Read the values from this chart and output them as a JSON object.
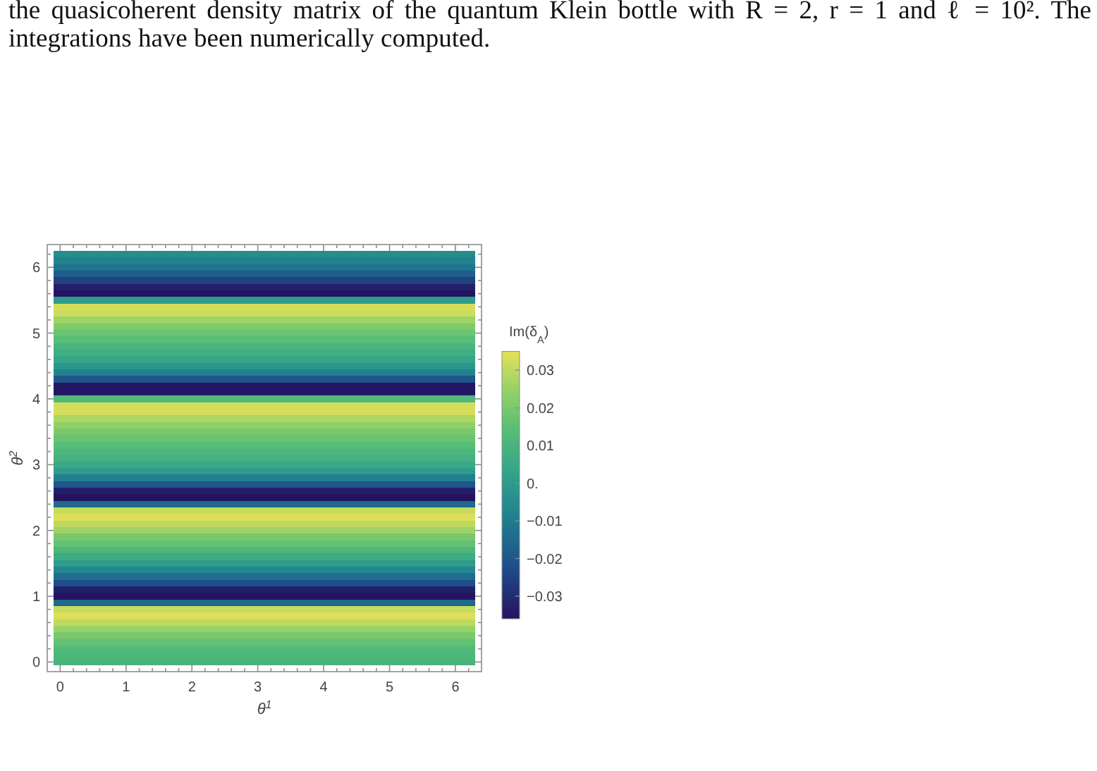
{
  "chart_data": {
    "type": "heatmap",
    "annotations": [
      "the quasicoherent density matrix of the quantum Klein bottle with R = 2, r = 1 and ℓ = 10². The integrations have been numerically computed."
    ],
    "xlabel": "θ$^{1}$",
    "ylabel": "θ$^{2}$",
    "clabel": "Im(δ$_{A}$)",
    "categories": [
      "0",
      null,
      null,
      null,
      null,
      "1",
      null,
      null,
      null,
      null,
      "2",
      null,
      null,
      null,
      null,
      "3",
      null,
      null,
      null,
      null,
      "4",
      null,
      null,
      null,
      null,
      "5",
      null,
      null,
      null,
      null,
      "6",
      null
    ],
    "y_categories": [
      null,
      null,
      "6",
      null,
      null,
      null,
      null,
      null,
      null,
      null,
      null,
      null,
      "5",
      null,
      null,
      null,
      null,
      null,
      null,
      null,
      null,
      null,
      "4",
      null,
      null,
      null,
      null,
      null,
      null,
      null,
      null,
      null,
      "3",
      null,
      null,
      null,
      null,
      null,
      null,
      null,
      null,
      null,
      "2",
      null,
      null,
      null,
      null,
      null,
      null,
      null,
      null,
      null,
      "1",
      null,
      null,
      null,
      null,
      null,
      null,
      null,
      null,
      null,
      "0"
    ],
    "cells": [
      [
        -0.005,
        -0.005,
        -0.005,
        -0.005,
        -0.005,
        -0.005,
        -0.005,
        -0.005,
        -0.005,
        -0.005,
        -0.005,
        -0.005,
        -0.005,
        -0.005,
        -0.005,
        -0.005,
        -0.005,
        -0.005,
        -0.005,
        -0.005,
        -0.005,
        -0.005,
        -0.005,
        -0.005,
        -0.005,
        -0.005,
        -0.005,
        -0.005,
        -0.005,
        -0.005,
        -0.005,
        -0.005
      ],
      [
        -0.008,
        -0.008,
        -0.008,
        -0.008,
        -0.008,
        -0.008,
        -0.008,
        -0.008,
        -0.008,
        -0.008,
        -0.008,
        -0.008,
        -0.008,
        -0.008,
        -0.008,
        -0.008,
        -0.008,
        -0.008,
        -0.008,
        -0.008,
        -0.008,
        -0.008,
        -0.008,
        -0.008,
        -0.008,
        -0.008,
        -0.008,
        -0.008,
        -0.008,
        -0.008,
        -0.008,
        -0.008
      ],
      [
        -0.012,
        -0.012,
        -0.012,
        -0.012,
        -0.012,
        -0.012,
        -0.012,
        -0.012,
        -0.012,
        -0.012,
        -0.012,
        -0.012,
        -0.012,
        -0.012,
        -0.012,
        -0.012,
        -0.012,
        -0.012,
        -0.012,
        -0.012,
        -0.012,
        -0.012,
        -0.012,
        -0.012,
        -0.012,
        -0.012,
        -0.012,
        -0.012,
        -0.012,
        -0.012,
        -0.012,
        -0.012
      ],
      [
        -0.018,
        -0.018,
        -0.018,
        -0.018,
        -0.018,
        -0.018,
        -0.018,
        -0.018,
        -0.018,
        -0.018,
        -0.018,
        -0.018,
        -0.018,
        -0.018,
        -0.018,
        -0.018,
        -0.018,
        -0.018,
        -0.018,
        -0.018,
        -0.018,
        -0.018,
        -0.018,
        -0.018,
        -0.018,
        -0.018,
        -0.018,
        -0.018,
        -0.018,
        -0.018,
        -0.018,
        -0.018
      ],
      [
        -0.025,
        -0.025,
        -0.025,
        -0.025,
        -0.025,
        -0.025,
        -0.025,
        -0.025,
        -0.025,
        -0.025,
        -0.025,
        -0.025,
        -0.025,
        -0.025,
        -0.025,
        -0.025,
        -0.025,
        -0.025,
        -0.025,
        -0.025,
        -0.025,
        -0.025,
        -0.025,
        -0.025,
        -0.025,
        -0.025,
        -0.025,
        -0.025,
        -0.025,
        -0.025,
        -0.025,
        -0.025
      ],
      [
        -0.033,
        -0.033,
        -0.033,
        -0.033,
        -0.033,
        -0.033,
        -0.033,
        -0.033,
        -0.033,
        -0.033,
        -0.033,
        -0.033,
        -0.033,
        -0.033,
        -0.033,
        -0.033,
        -0.033,
        -0.033,
        -0.033,
        -0.033,
        -0.033,
        -0.033,
        -0.033,
        -0.033,
        -0.033,
        -0.033,
        -0.033,
        -0.033,
        -0.033,
        -0.033,
        -0.033,
        -0.033
      ],
      [
        -0.036,
        -0.036,
        -0.036,
        -0.036,
        -0.036,
        -0.036,
        -0.036,
        -0.036,
        -0.036,
        -0.036,
        -0.036,
        -0.036,
        -0.036,
        -0.036,
        -0.036,
        -0.036,
        -0.036,
        -0.036,
        -0.036,
        -0.036,
        -0.036,
        -0.036,
        -0.036,
        -0.036,
        -0.036,
        -0.036,
        -0.036,
        -0.036,
        -0.036,
        -0.036,
        -0.036,
        -0.036
      ],
      [
        0,
        0,
        0,
        0,
        0,
        0,
        0,
        0,
        0,
        0,
        0,
        0,
        0,
        0,
        0,
        0,
        0,
        0,
        0,
        0,
        0,
        0,
        0,
        0,
        0,
        0,
        0,
        0,
        0,
        0,
        0,
        0
      ],
      [
        0.033,
        0.033,
        0.033,
        0.033,
        0.033,
        0.033,
        0.033,
        0.033,
        0.033,
        0.033,
        0.033,
        0.033,
        0.033,
        0.033,
        0.033,
        0.033,
        0.033,
        0.033,
        0.033,
        0.033,
        0.033,
        0.033,
        0.033,
        0.033,
        0.033,
        0.033,
        0.033,
        0.033,
        0.033,
        0.033,
        0.033,
        0.033
      ],
      [
        0.032,
        0.032,
        0.032,
        0.032,
        0.032,
        0.032,
        0.032,
        0.032,
        0.032,
        0.032,
        0.032,
        0.032,
        0.032,
        0.032,
        0.032,
        0.032,
        0.032,
        0.032,
        0.032,
        0.032,
        0.032,
        0.032,
        0.032,
        0.032,
        0.032,
        0.032,
        0.032,
        0.032,
        0.032,
        0.032,
        0.032,
        0.032
      ],
      [
        0.026,
        0.026,
        0.026,
        0.026,
        0.026,
        0.026,
        0.026,
        0.026,
        0.026,
        0.026,
        0.026,
        0.026,
        0.026,
        0.026,
        0.026,
        0.026,
        0.026,
        0.026,
        0.026,
        0.026,
        0.026,
        0.026,
        0.026,
        0.026,
        0.026,
        0.026,
        0.026,
        0.026,
        0.026,
        0.026,
        0.026,
        0.026
      ],
      [
        0.021,
        0.021,
        0.021,
        0.021,
        0.021,
        0.021,
        0.021,
        0.021,
        0.021,
        0.021,
        0.021,
        0.021,
        0.021,
        0.021,
        0.021,
        0.021,
        0.021,
        0.021,
        0.021,
        0.021,
        0.021,
        0.021,
        0.021,
        0.021,
        0.021,
        0.021,
        0.021,
        0.021,
        0.021,
        0.021,
        0.021,
        0.021
      ],
      [
        0.017,
        0.017,
        0.017,
        0.017,
        0.017,
        0.017,
        0.017,
        0.017,
        0.017,
        0.017,
        0.017,
        0.017,
        0.017,
        0.017,
        0.017,
        0.017,
        0.017,
        0.017,
        0.017,
        0.017,
        0.017,
        0.017,
        0.017,
        0.017,
        0.017,
        0.017,
        0.017,
        0.017,
        0.017,
        0.017,
        0.017,
        0.017
      ],
      [
        0.014,
        0.014,
        0.014,
        0.014,
        0.014,
        0.014,
        0.014,
        0.014,
        0.014,
        0.014,
        0.014,
        0.014,
        0.014,
        0.014,
        0.014,
        0.014,
        0.014,
        0.014,
        0.014,
        0.014,
        0.014,
        0.014,
        0.014,
        0.014,
        0.014,
        0.014,
        0.014,
        0.014,
        0.014,
        0.014,
        0.014,
        0.014
      ],
      [
        0.01,
        0.01,
        0.01,
        0.01,
        0.01,
        0.01,
        0.01,
        0.01,
        0.01,
        0.01,
        0.01,
        0.01,
        0.01,
        0.01,
        0.01,
        0.01,
        0.01,
        0.01,
        0.01,
        0.01,
        0.01,
        0.01,
        0.01,
        0.01,
        0.01,
        0.01,
        0.01,
        0.01,
        0.01,
        0.01,
        0.01,
        0.01
      ],
      [
        0.007,
        0.007,
        0.007,
        0.007,
        0.007,
        0.007,
        0.007,
        0.007,
        0.007,
        0.007,
        0.007,
        0.007,
        0.007,
        0.007,
        0.007,
        0.007,
        0.007,
        0.007,
        0.007,
        0.007,
        0.007,
        0.007,
        0.007,
        0.007,
        0.007,
        0.007,
        0.007,
        0.007,
        0.007,
        0.007,
        0.007,
        0.007
      ],
      [
        0.004,
        0.004,
        0.004,
        0.004,
        0.004,
        0.004,
        0.004,
        0.004,
        0.004,
        0.004,
        0.004,
        0.004,
        0.004,
        0.004,
        0.004,
        0.004,
        0.004,
        0.004,
        0.004,
        0.004,
        0.004,
        0.004,
        0.004,
        0.004,
        0.004,
        0.004,
        0.004,
        0.004,
        0.004,
        0.004,
        0.004,
        0.004
      ],
      [
        -0.002,
        -0.002,
        -0.002,
        -0.002,
        -0.002,
        -0.002,
        -0.002,
        -0.002,
        -0.002,
        -0.002,
        -0.002,
        -0.002,
        -0.002,
        -0.002,
        -0.002,
        -0.002,
        -0.002,
        -0.002,
        -0.002,
        -0.002,
        -0.002,
        -0.002,
        -0.002,
        -0.002,
        -0.002,
        -0.002,
        -0.002,
        -0.002,
        -0.002,
        -0.002,
        -0.002,
        -0.002
      ],
      [
        -0.008,
        -0.008,
        -0.008,
        -0.008,
        -0.008,
        -0.008,
        -0.008,
        -0.008,
        -0.008,
        -0.008,
        -0.008,
        -0.008,
        -0.008,
        -0.008,
        -0.008,
        -0.008,
        -0.008,
        -0.008,
        -0.008,
        -0.008,
        -0.008,
        -0.008,
        -0.008,
        -0.008,
        -0.008,
        -0.008,
        -0.008,
        -0.008,
        -0.008,
        -0.008,
        -0.008,
        -0.008
      ],
      [
        -0.02,
        -0.02,
        -0.02,
        -0.02,
        -0.02,
        -0.02,
        -0.02,
        -0.02,
        -0.02,
        -0.02,
        -0.02,
        -0.02,
        -0.02,
        -0.02,
        -0.02,
        -0.02,
        -0.02,
        -0.02,
        -0.02,
        -0.02,
        -0.02,
        -0.02,
        -0.02,
        -0.02,
        -0.02,
        -0.02,
        -0.02,
        -0.02,
        -0.02,
        -0.02,
        -0.02,
        -0.02
      ],
      [
        -0.035,
        -0.035,
        -0.035,
        -0.035,
        -0.035,
        -0.035,
        -0.035,
        -0.035,
        -0.035,
        -0.035,
        -0.035,
        -0.035,
        -0.035,
        -0.035,
        -0.035,
        -0.035,
        -0.035,
        -0.035,
        -0.035,
        -0.035,
        -0.035,
        -0.035,
        -0.035,
        -0.035,
        -0.035,
        -0.035,
        -0.035,
        -0.035,
        -0.035,
        -0.035,
        -0.035,
        -0.035
      ],
      [
        -0.035,
        -0.035,
        -0.035,
        -0.035,
        -0.035,
        -0.035,
        -0.035,
        -0.035,
        -0.035,
        -0.035,
        -0.035,
        -0.035,
        -0.035,
        -0.035,
        -0.035,
        -0.035,
        -0.035,
        -0.035,
        -0.035,
        -0.035,
        -0.035,
        -0.035,
        -0.035,
        -0.035,
        -0.035,
        -0.035,
        -0.035,
        -0.035,
        -0.035,
        -0.035,
        -0.035,
        -0.035
      ],
      [
        0.012,
        0.012,
        0.012,
        0.012,
        0.012,
        0.012,
        0.012,
        0.012,
        0.012,
        0.012,
        0.012,
        0.012,
        0.012,
        0.012,
        0.012,
        0.012,
        0.012,
        0.012,
        0.012,
        0.012,
        0.012,
        0.012,
        0.012,
        0.012,
        0.012,
        0.012,
        0.012,
        0.012,
        0.012,
        0.012,
        0.012,
        0.012
      ],
      [
        0.033,
        0.033,
        0.033,
        0.033,
        0.033,
        0.033,
        0.033,
        0.033,
        0.033,
        0.033,
        0.033,
        0.033,
        0.033,
        0.033,
        0.033,
        0.033,
        0.033,
        0.033,
        0.033,
        0.033,
        0.033,
        0.033,
        0.033,
        0.033,
        0.033,
        0.033,
        0.033,
        0.033,
        0.033,
        0.033,
        0.033,
        0.033
      ],
      [
        0.033,
        0.033,
        0.033,
        0.033,
        0.033,
        0.033,
        0.033,
        0.033,
        0.033,
        0.033,
        0.033,
        0.033,
        0.033,
        0.033,
        0.033,
        0.033,
        0.033,
        0.033,
        0.033,
        0.033,
        0.033,
        0.033,
        0.033,
        0.033,
        0.033,
        0.033,
        0.033,
        0.033,
        0.033,
        0.033,
        0.033,
        0.033
      ],
      [
        0.028,
        0.028,
        0.028,
        0.028,
        0.028,
        0.028,
        0.028,
        0.028,
        0.028,
        0.028,
        0.028,
        0.028,
        0.028,
        0.028,
        0.028,
        0.028,
        0.028,
        0.028,
        0.028,
        0.028,
        0.028,
        0.028,
        0.028,
        0.028,
        0.028,
        0.028,
        0.028,
        0.028,
        0.028,
        0.028,
        0.028,
        0.028
      ],
      [
        0.024,
        0.024,
        0.024,
        0.024,
        0.024,
        0.024,
        0.024,
        0.024,
        0.024,
        0.024,
        0.024,
        0.024,
        0.024,
        0.024,
        0.024,
        0.024,
        0.024,
        0.024,
        0.024,
        0.024,
        0.024,
        0.024,
        0.024,
        0.024,
        0.024,
        0.024,
        0.024,
        0.024,
        0.024,
        0.024,
        0.024,
        0.024
      ],
      [
        0.02,
        0.02,
        0.02,
        0.02,
        0.02,
        0.02,
        0.02,
        0.02,
        0.02,
        0.02,
        0.02,
        0.02,
        0.02,
        0.02,
        0.02,
        0.02,
        0.02,
        0.02,
        0.02,
        0.02,
        0.02,
        0.02,
        0.02,
        0.02,
        0.02,
        0.02,
        0.02,
        0.02,
        0.02,
        0.02,
        0.02,
        0.02
      ],
      [
        0.017,
        0.017,
        0.017,
        0.017,
        0.017,
        0.017,
        0.017,
        0.017,
        0.017,
        0.017,
        0.017,
        0.017,
        0.017,
        0.017,
        0.017,
        0.017,
        0.017,
        0.017,
        0.017,
        0.017,
        0.017,
        0.017,
        0.017,
        0.017,
        0.017,
        0.017,
        0.017,
        0.017,
        0.017,
        0.017,
        0.017,
        0.017
      ],
      [
        0.014,
        0.014,
        0.014,
        0.014,
        0.014,
        0.014,
        0.014,
        0.014,
        0.014,
        0.014,
        0.014,
        0.014,
        0.014,
        0.014,
        0.014,
        0.014,
        0.014,
        0.014,
        0.014,
        0.014,
        0.014,
        0.014,
        0.014,
        0.014,
        0.014,
        0.014,
        0.014,
        0.014,
        0.014,
        0.014,
        0.014,
        0.014
      ],
      [
        0.011,
        0.011,
        0.011,
        0.011,
        0.011,
        0.011,
        0.011,
        0.011,
        0.011,
        0.011,
        0.011,
        0.011,
        0.011,
        0.011,
        0.011,
        0.011,
        0.011,
        0.011,
        0.011,
        0.011,
        0.011,
        0.011,
        0.011,
        0.011,
        0.011,
        0.011,
        0.011,
        0.011,
        0.011,
        0.011,
        0.011,
        0.011
      ],
      [
        0.009,
        0.009,
        0.009,
        0.009,
        0.009,
        0.009,
        0.009,
        0.009,
        0.009,
        0.009,
        0.009,
        0.009,
        0.009,
        0.009,
        0.009,
        0.009,
        0.009,
        0.009,
        0.009,
        0.009,
        0.009,
        0.009,
        0.009,
        0.009,
        0.009,
        0.009,
        0.009,
        0.009,
        0.009,
        0.009,
        0.009,
        0.009
      ],
      [
        0.005,
        0.005,
        0.005,
        0.005,
        0.005,
        0.005,
        0.005,
        0.005,
        0.005,
        0.005,
        0.005,
        0.005,
        0.005,
        0.005,
        0.005,
        0.005,
        0.005,
        0.005,
        0.005,
        0.005,
        0.005,
        0.005,
        0.005,
        0.005,
        0.005,
        0.005,
        0.005,
        0.005,
        0.005,
        0.005,
        0.005,
        0.005
      ],
      [
        0,
        0,
        0,
        0,
        0,
        0,
        0,
        0,
        0,
        0,
        0,
        0,
        0,
        0,
        0,
        0,
        0,
        0,
        0,
        0,
        0,
        0,
        0,
        0,
        0,
        0,
        0,
        0,
        0,
        0,
        0,
        0
      ],
      [
        -0.009,
        -0.009,
        -0.009,
        -0.009,
        -0.009,
        -0.009,
        -0.009,
        -0.009,
        -0.009,
        -0.009,
        -0.009,
        -0.009,
        -0.009,
        -0.009,
        -0.009,
        -0.009,
        -0.009,
        -0.009,
        -0.009,
        -0.009,
        -0.009,
        -0.009,
        -0.009,
        -0.009,
        -0.009,
        -0.009,
        -0.009,
        -0.009,
        -0.009,
        -0.009,
        -0.009,
        -0.009
      ],
      [
        -0.02,
        -0.02,
        -0.02,
        -0.02,
        -0.02,
        -0.02,
        -0.02,
        -0.02,
        -0.02,
        -0.02,
        -0.02,
        -0.02,
        -0.02,
        -0.02,
        -0.02,
        -0.02,
        -0.02,
        -0.02,
        -0.02,
        -0.02,
        -0.02,
        -0.02,
        -0.02,
        -0.02,
        -0.02,
        -0.02,
        -0.02,
        -0.02,
        -0.02,
        -0.02,
        -0.02,
        -0.02
      ],
      [
        -0.033,
        -0.033,
        -0.033,
        -0.033,
        -0.033,
        -0.033,
        -0.033,
        -0.033,
        -0.033,
        -0.033,
        -0.033,
        -0.033,
        -0.033,
        -0.033,
        -0.033,
        -0.033,
        -0.033,
        -0.033,
        -0.033,
        -0.033,
        -0.033,
        -0.033,
        -0.033,
        -0.033,
        -0.033,
        -0.033,
        -0.033,
        -0.033,
        -0.033,
        -0.033,
        -0.033,
        -0.033
      ],
      [
        -0.036,
        -0.036,
        -0.036,
        -0.036,
        -0.036,
        -0.036,
        -0.036,
        -0.036,
        -0.036,
        -0.036,
        -0.036,
        -0.036,
        -0.036,
        -0.036,
        -0.036,
        -0.036,
        -0.036,
        -0.036,
        -0.036,
        -0.036,
        -0.036,
        -0.036,
        -0.036,
        -0.036,
        -0.036,
        -0.036,
        -0.036,
        -0.036,
        -0.036,
        -0.036,
        -0.036,
        -0.036
      ],
      [
        -0.015,
        -0.015,
        -0.015,
        -0.015,
        -0.015,
        -0.015,
        -0.015,
        -0.015,
        -0.015,
        -0.015,
        -0.015,
        -0.015,
        -0.015,
        -0.015,
        -0.015,
        -0.015,
        -0.015,
        -0.015,
        -0.015,
        -0.015,
        -0.015,
        -0.015,
        -0.015,
        -0.015,
        -0.015,
        -0.015,
        -0.015,
        -0.015,
        -0.015,
        -0.015,
        -0.015,
        -0.015
      ],
      [
        0.031,
        0.031,
        0.031,
        0.031,
        0.031,
        0.031,
        0.031,
        0.031,
        0.031,
        0.031,
        0.031,
        0.031,
        0.031,
        0.031,
        0.031,
        0.031,
        0.031,
        0.031,
        0.031,
        0.031,
        0.031,
        0.031,
        0.031,
        0.031,
        0.031,
        0.031,
        0.031,
        0.031,
        0.031,
        0.031,
        0.031,
        0.031
      ],
      [
        0.034,
        0.034,
        0.034,
        0.034,
        0.034,
        0.034,
        0.034,
        0.034,
        0.034,
        0.034,
        0.034,
        0.034,
        0.034,
        0.034,
        0.034,
        0.034,
        0.034,
        0.034,
        0.034,
        0.034,
        0.034,
        0.034,
        0.034,
        0.034,
        0.034,
        0.034,
        0.034,
        0.034,
        0.034,
        0.034,
        0.034,
        0.034
      ],
      [
        0.03,
        0.03,
        0.03,
        0.03,
        0.03,
        0.03,
        0.03,
        0.03,
        0.03,
        0.03,
        0.03,
        0.03,
        0.03,
        0.03,
        0.03,
        0.03,
        0.03,
        0.03,
        0.03,
        0.03,
        0.03,
        0.03,
        0.03,
        0.03,
        0.03,
        0.03,
        0.03,
        0.03,
        0.03,
        0.03,
        0.03,
        0.03
      ],
      [
        0.026,
        0.026,
        0.026,
        0.026,
        0.026,
        0.026,
        0.026,
        0.026,
        0.026,
        0.026,
        0.026,
        0.026,
        0.026,
        0.026,
        0.026,
        0.026,
        0.026,
        0.026,
        0.026,
        0.026,
        0.026,
        0.026,
        0.026,
        0.026,
        0.026,
        0.026,
        0.026,
        0.026,
        0.026,
        0.026,
        0.026,
        0.026
      ],
      [
        0.02,
        0.02,
        0.02,
        0.02,
        0.02,
        0.02,
        0.02,
        0.02,
        0.02,
        0.02,
        0.02,
        0.02,
        0.02,
        0.02,
        0.02,
        0.02,
        0.02,
        0.02,
        0.02,
        0.02,
        0.02,
        0.02,
        0.02,
        0.02,
        0.02,
        0.02,
        0.02,
        0.02,
        0.02,
        0.02,
        0.02,
        0.02
      ],
      [
        0.016,
        0.016,
        0.016,
        0.016,
        0.016,
        0.016,
        0.016,
        0.016,
        0.016,
        0.016,
        0.016,
        0.016,
        0.016,
        0.016,
        0.016,
        0.016,
        0.016,
        0.016,
        0.016,
        0.016,
        0.016,
        0.016,
        0.016,
        0.016,
        0.016,
        0.016,
        0.016,
        0.016,
        0.016,
        0.016,
        0.016,
        0.016
      ],
      [
        0.011,
        0.011,
        0.011,
        0.011,
        0.011,
        0.011,
        0.011,
        0.011,
        0.011,
        0.011,
        0.011,
        0.011,
        0.011,
        0.011,
        0.011,
        0.011,
        0.011,
        0.011,
        0.011,
        0.011,
        0.011,
        0.011,
        0.011,
        0.011,
        0.011,
        0.011,
        0.011,
        0.011,
        0.011,
        0.011,
        0.011,
        0.011
      ],
      [
        0.006,
        0.006,
        0.006,
        0.006,
        0.006,
        0.006,
        0.006,
        0.006,
        0.006,
        0.006,
        0.006,
        0.006,
        0.006,
        0.006,
        0.006,
        0.006,
        0.006,
        0.006,
        0.006,
        0.006,
        0.006,
        0.006,
        0.006,
        0.006,
        0.006,
        0.006,
        0.006,
        0.006,
        0.006,
        0.006,
        0.006,
        0.006
      ],
      [
        0,
        0,
        0,
        0,
        0,
        0,
        0,
        0,
        0,
        0,
        0,
        0,
        0,
        0,
        0,
        0,
        0,
        0,
        0,
        0,
        0,
        0,
        0,
        0,
        0,
        0,
        0,
        0,
        0,
        0,
        0,
        0
      ],
      [
        -0.007,
        -0.007,
        -0.007,
        -0.007,
        -0.007,
        -0.007,
        -0.007,
        -0.007,
        -0.007,
        -0.007,
        -0.007,
        -0.007,
        -0.007,
        -0.007,
        -0.007,
        -0.007,
        -0.007,
        -0.007,
        -0.007,
        -0.007,
        -0.007,
        -0.007,
        -0.007,
        -0.007,
        -0.007,
        -0.007,
        -0.007,
        -0.007,
        -0.007,
        -0.007,
        -0.007,
        -0.007
      ],
      [
        -0.014,
        -0.014,
        -0.014,
        -0.014,
        -0.014,
        -0.014,
        -0.014,
        -0.014,
        -0.014,
        -0.014,
        -0.014,
        -0.014,
        -0.014,
        -0.014,
        -0.014,
        -0.014,
        -0.014,
        -0.014,
        -0.014,
        -0.014,
        -0.014,
        -0.014,
        -0.014,
        -0.014,
        -0.014,
        -0.014,
        -0.014,
        -0.014,
        -0.014,
        -0.014,
        -0.014,
        -0.014
      ],
      [
        -0.022,
        -0.022,
        -0.022,
        -0.022,
        -0.022,
        -0.022,
        -0.022,
        -0.022,
        -0.022,
        -0.022,
        -0.022,
        -0.022,
        -0.022,
        -0.022,
        -0.022,
        -0.022,
        -0.022,
        -0.022,
        -0.022,
        -0.022,
        -0.022,
        -0.022,
        -0.022,
        -0.022,
        -0.022,
        -0.022,
        -0.022,
        -0.022,
        -0.022,
        -0.022,
        -0.022,
        -0.022
      ],
      [
        -0.033,
        -0.033,
        -0.033,
        -0.033,
        -0.033,
        -0.033,
        -0.033,
        -0.033,
        -0.033,
        -0.033,
        -0.033,
        -0.033,
        -0.033,
        -0.033,
        -0.033,
        -0.033,
        -0.033,
        -0.033,
        -0.033,
        -0.033,
        -0.033,
        -0.033,
        -0.033,
        -0.033,
        -0.033,
        -0.033,
        -0.033,
        -0.033,
        -0.033,
        -0.033,
        -0.033,
        -0.033
      ],
      [
        -0.036,
        -0.036,
        -0.036,
        -0.036,
        -0.036,
        -0.036,
        -0.036,
        -0.036,
        -0.036,
        -0.036,
        -0.036,
        -0.036,
        -0.036,
        -0.036,
        -0.036,
        -0.036,
        -0.036,
        -0.036,
        -0.036,
        -0.036,
        -0.036,
        -0.036,
        -0.036,
        -0.036,
        -0.036,
        -0.036,
        -0.036,
        -0.036,
        -0.036,
        -0.036,
        -0.036,
        -0.036
      ],
      [
        -0.015,
        -0.015,
        -0.015,
        -0.015,
        -0.015,
        -0.015,
        -0.015,
        -0.015,
        -0.015,
        -0.015,
        -0.015,
        -0.015,
        -0.015,
        -0.015,
        -0.015,
        -0.015,
        -0.015,
        -0.015,
        -0.015,
        -0.015,
        -0.015,
        -0.015,
        -0.015,
        -0.015,
        -0.015,
        -0.015,
        -0.015,
        -0.015,
        -0.015,
        -0.015,
        -0.015,
        -0.015
      ],
      [
        0.031,
        0.031,
        0.031,
        0.031,
        0.031,
        0.031,
        0.031,
        0.031,
        0.031,
        0.031,
        0.031,
        0.031,
        0.031,
        0.031,
        0.031,
        0.031,
        0.031,
        0.031,
        0.031,
        0.031,
        0.031,
        0.031,
        0.031,
        0.031,
        0.031,
        0.031,
        0.031,
        0.031,
        0.031,
        0.031,
        0.031,
        0.031
      ],
      [
        0.034,
        0.034,
        0.034,
        0.034,
        0.034,
        0.034,
        0.034,
        0.034,
        0.034,
        0.034,
        0.034,
        0.034,
        0.034,
        0.034,
        0.034,
        0.034,
        0.034,
        0.034,
        0.034,
        0.034,
        0.034,
        0.034,
        0.034,
        0.034,
        0.034,
        0.034,
        0.034,
        0.034,
        0.034,
        0.034,
        0.034,
        0.034
      ],
      [
        0.03,
        0.03,
        0.03,
        0.03,
        0.03,
        0.03,
        0.03,
        0.03,
        0.03,
        0.03,
        0.03,
        0.03,
        0.03,
        0.03,
        0.03,
        0.03,
        0.03,
        0.03,
        0.03,
        0.03,
        0.03,
        0.03,
        0.03,
        0.03,
        0.03,
        0.03,
        0.03,
        0.03,
        0.03,
        0.03,
        0.03,
        0.03
      ],
      [
        0.025,
        0.025,
        0.025,
        0.025,
        0.025,
        0.025,
        0.025,
        0.025,
        0.025,
        0.025,
        0.025,
        0.025,
        0.025,
        0.025,
        0.025,
        0.025,
        0.025,
        0.025,
        0.025,
        0.025,
        0.025,
        0.025,
        0.025,
        0.025,
        0.025,
        0.025,
        0.025,
        0.025,
        0.025,
        0.025,
        0.025,
        0.025
      ],
      [
        0.02,
        0.02,
        0.02,
        0.02,
        0.02,
        0.02,
        0.02,
        0.02,
        0.02,
        0.02,
        0.02,
        0.02,
        0.02,
        0.02,
        0.02,
        0.02,
        0.02,
        0.02,
        0.02,
        0.02,
        0.02,
        0.02,
        0.02,
        0.02,
        0.02,
        0.02,
        0.02,
        0.02,
        0.02,
        0.02,
        0.02,
        0.02
      ],
      [
        0.016,
        0.016,
        0.016,
        0.016,
        0.016,
        0.016,
        0.016,
        0.016,
        0.016,
        0.016,
        0.016,
        0.016,
        0.016,
        0.016,
        0.016,
        0.016,
        0.016,
        0.016,
        0.016,
        0.016,
        0.016,
        0.016,
        0.016,
        0.016,
        0.016,
        0.016,
        0.016,
        0.016,
        0.016,
        0.016,
        0.016,
        0.016
      ],
      [
        0.013,
        0.013,
        0.013,
        0.013,
        0.013,
        0.013,
        0.013,
        0.013,
        0.013,
        0.013,
        0.013,
        0.013,
        0.013,
        0.013,
        0.013,
        0.013,
        0.013,
        0.013,
        0.013,
        0.013,
        0.013,
        0.013,
        0.013,
        0.013,
        0.013,
        0.013,
        0.013,
        0.013,
        0.013,
        0.013,
        0.013,
        0.013
      ],
      [
        0.011,
        0.011,
        0.011,
        0.011,
        0.011,
        0.011,
        0.011,
        0.011,
        0.011,
        0.011,
        0.011,
        0.011,
        0.011,
        0.011,
        0.011,
        0.011,
        0.011,
        0.011,
        0.011,
        0.011,
        0.011,
        0.011,
        0.011,
        0.011,
        0.011,
        0.011,
        0.011,
        0.011,
        0.011,
        0.011,
        0.011,
        0.011
      ],
      [
        0.01,
        0.01,
        0.01,
        0.01,
        0.01,
        0.01,
        0.01,
        0.01,
        0.01,
        0.01,
        0.01,
        0.01,
        0.01,
        0.01,
        0.01,
        0.01,
        0.01,
        0.01,
        0.01,
        0.01,
        0.01,
        0.01,
        0.01,
        0.01,
        0.01,
        0.01,
        0.01,
        0.01,
        0.01,
        0.01,
        0.01,
        0.01
      ]
    ],
    "clim": [
      -0.036,
      0.035
    ],
    "cticks": [
      {
        "value": -0.03,
        "label": "−0.03"
      },
      {
        "value": -0.02,
        "label": "−0.02"
      },
      {
        "value": -0.01,
        "label": "−0.01"
      },
      {
        "value": 0,
        "label": "0."
      },
      0.01,
      0.02,
      0.03
    ]
  }
}
